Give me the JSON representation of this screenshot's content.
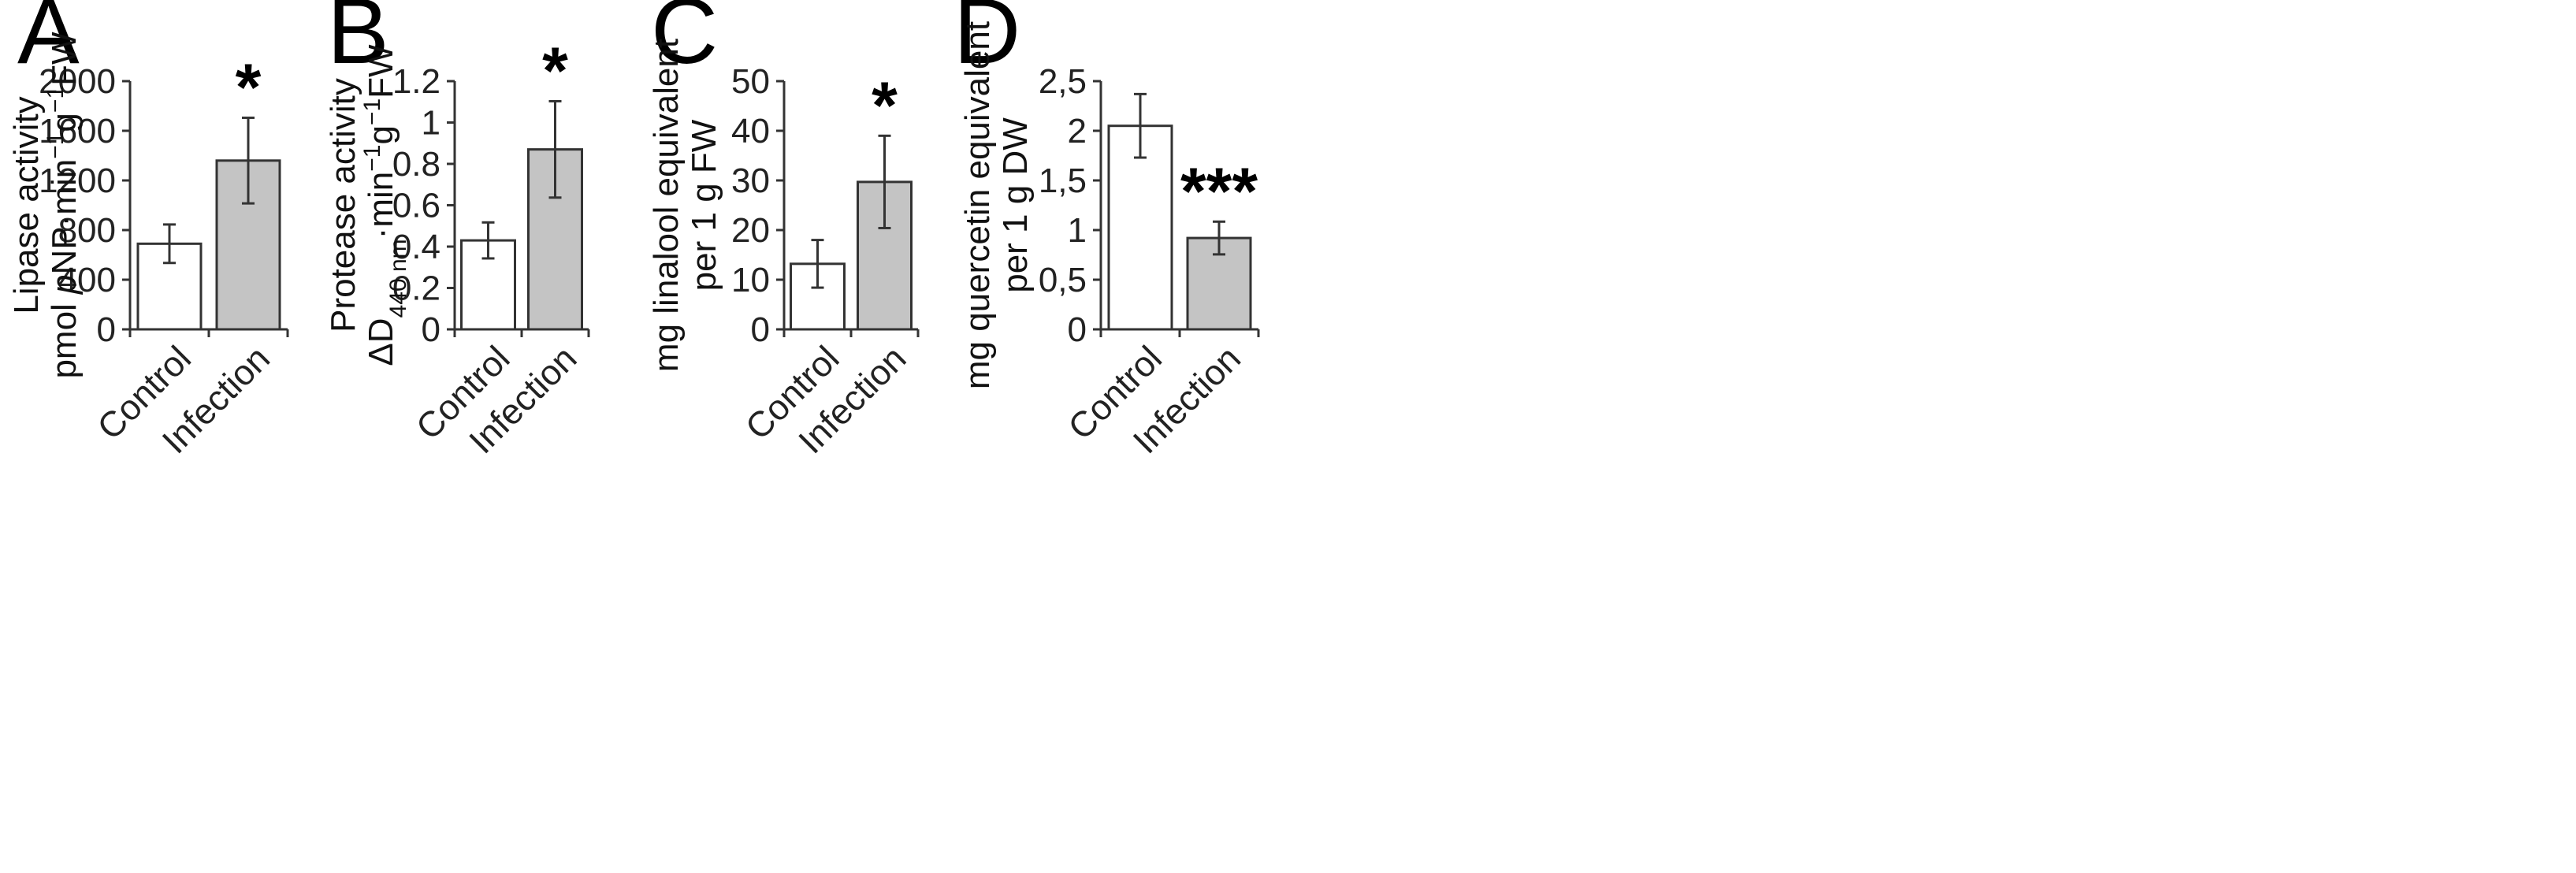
{
  "chart_data": [
    {
      "type": "bar",
      "panel": "A",
      "categories": [
        "Control",
        "Infection"
      ],
      "values": [
        690,
        1360
      ],
      "errors": [
        155,
        345
      ],
      "significance": [
        "",
        "*"
      ],
      "ylabel_lines": [
        [
          {
            "t": "Lipase activity"
          }
        ],
        [
          {
            "t": "pmol "
          },
          {
            "t": "p",
            "style": "italic"
          },
          {
            "t": "NP·min"
          },
          {
            "t": "−1",
            "style": "sup"
          },
          {
            "t": "g"
          },
          {
            "t": "−1",
            "style": "sup"
          },
          {
            "t": "FW"
          }
        ]
      ],
      "ylim": [
        0,
        2000
      ],
      "ticks": [
        0,
        400,
        800,
        1200,
        1600,
        2000
      ],
      "tick_labels": [
        "0",
        "400",
        "800",
        "1200",
        "1600",
        "2000"
      ],
      "colors": [
        "#ffffff",
        "#c4c4c4"
      ]
    },
    {
      "type": "bar",
      "panel": "B",
      "categories": [
        "Control",
        "Infection"
      ],
      "values": [
        0.43,
        0.87
      ],
      "errors": [
        0.087,
        0.233
      ],
      "significance": [
        "",
        "*"
      ],
      "ylabel_lines": [
        [
          {
            "t": "Protease activity"
          }
        ],
        [
          {
            "t": "ΔD"
          },
          {
            "t": "440 nm",
            "style": "sub"
          },
          {
            "t": "·min"
          },
          {
            "t": "−1",
            "style": "sup"
          },
          {
            "t": "g"
          },
          {
            "t": "−1",
            "style": "sup"
          },
          {
            "t": "FW"
          }
        ]
      ],
      "ylim": [
        0,
        1.2
      ],
      "ticks": [
        0,
        0.2,
        0.4,
        0.6,
        0.8,
        1.0,
        1.2
      ],
      "tick_labels": [
        "0",
        "0.2",
        "0.4",
        "0.6",
        "0.8",
        "1",
        "1.2"
      ],
      "colors": [
        "#ffffff",
        "#c4c4c4"
      ]
    },
    {
      "type": "bar",
      "panel": "C",
      "categories": [
        "Control",
        "Infection"
      ],
      "values": [
        13.2,
        29.7
      ],
      "errors": [
        4.8,
        9.3
      ],
      "significance": [
        "",
        "*"
      ],
      "ylabel_lines": [
        [
          {
            "t": "mg linalool equivalent"
          }
        ],
        [
          {
            "t": "per 1 g FW"
          }
        ]
      ],
      "ylim": [
        0,
        50
      ],
      "ticks": [
        0,
        10,
        20,
        30,
        40,
        50
      ],
      "tick_labels": [
        "0",
        "10",
        "20",
        "30",
        "40",
        "50"
      ],
      "colors": [
        "#ffffff",
        "#c4c4c4"
      ]
    },
    {
      "type": "bar",
      "panel": "D",
      "categories": [
        "Control",
        "Infection"
      ],
      "values": [
        2.05,
        0.92
      ],
      "errors": [
        0.32,
        0.165
      ],
      "significance": [
        "",
        "***"
      ],
      "ylabel_lines": [
        [
          {
            "t": "mg quercetin equivalent"
          }
        ],
        [
          {
            "t": "per 1 g  DW"
          }
        ]
      ],
      "ylim": [
        0,
        2.5
      ],
      "ticks": [
        0,
        0.5,
        1.0,
        1.5,
        2.0,
        2.5
      ],
      "tick_labels": [
        "0",
        "0,5",
        "1",
        "1,5",
        "2",
        "2,5"
      ],
      "colors": [
        "#ffffff",
        "#c4c4c4"
      ]
    }
  ]
}
